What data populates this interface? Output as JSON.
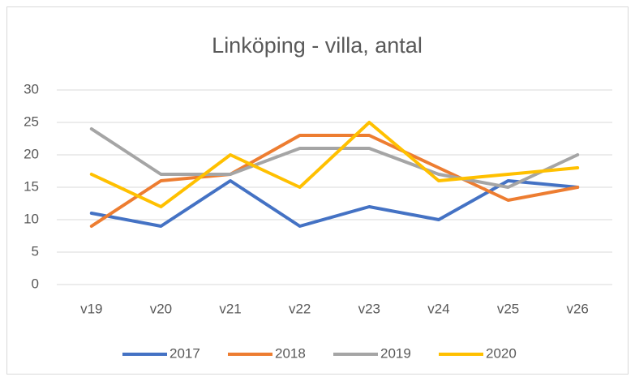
{
  "chart_data": {
    "type": "line",
    "title": "Linköping - villa, antal",
    "categories": [
      "v19",
      "v20",
      "v21",
      "v22",
      "v23",
      "v24",
      "v25",
      "v26"
    ],
    "series": [
      {
        "name": "2017",
        "color": "#4472c4",
        "values": [
          11,
          9,
          16,
          9,
          12,
          10,
          16,
          15
        ]
      },
      {
        "name": "2018",
        "color": "#ed7d31",
        "values": [
          9,
          16,
          17,
          23,
          23,
          18,
          13,
          15
        ]
      },
      {
        "name": "2019",
        "color": "#a5a5a5",
        "values": [
          24,
          17,
          17,
          21,
          21,
          17,
          15,
          20
        ]
      },
      {
        "name": "2020",
        "color": "#ffc000",
        "values": [
          17,
          12,
          20,
          15,
          25,
          16,
          17,
          18
        ]
      }
    ],
    "ylim": [
      0,
      30
    ],
    "yticks": [
      0,
      5,
      10,
      15,
      20,
      25,
      30
    ],
    "grid": true,
    "legend": "bottom"
  }
}
